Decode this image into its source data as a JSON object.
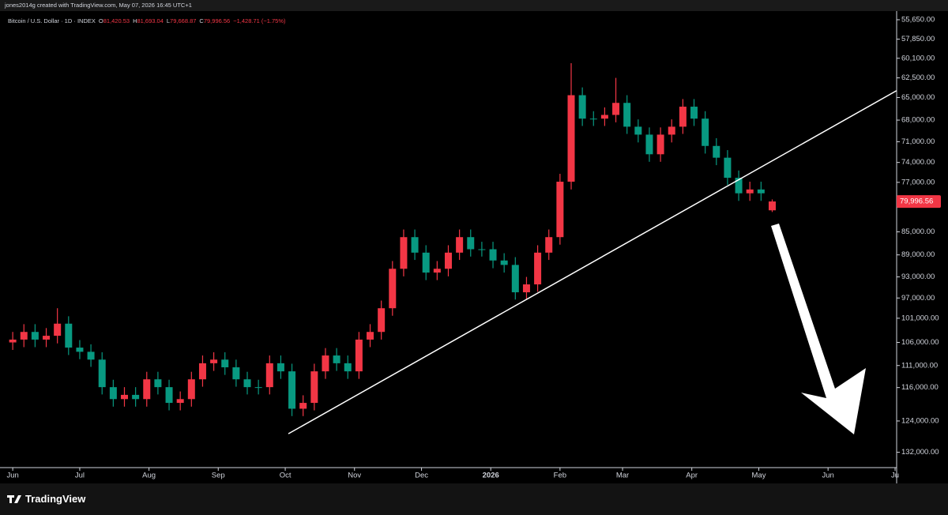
{
  "header": {
    "watermark": "jones2014g created with TradingView.com, May 07, 2026 16:45 UTC+1",
    "symbol": "Bitcoin / U.S. Dollar · 1D · INDEX",
    "quote": [
      "O",
      "81,420.53",
      "H",
      "81,693.04",
      "L",
      "79,668.87",
      "C",
      "79,996.56",
      "−1,428.71 (−1.75%)"
    ]
  },
  "chart_data": {
    "type": "candlestick",
    "log_scale": true,
    "up_color": "#089981",
    "down_color": "#f23645",
    "x": [
      0,
      5,
      10,
      15,
      20,
      25,
      30,
      35,
      40,
      45,
      50,
      55,
      60,
      65,
      70,
      75,
      80,
      85,
      90,
      95,
      100,
      105,
      110,
      115,
      120,
      125,
      130,
      135,
      140,
      145,
      150,
      155,
      160,
      165,
      170,
      175,
      180,
      185,
      190,
      195,
      200,
      205,
      210,
      215,
      220,
      225,
      230,
      235,
      240,
      245,
      250,
      255,
      260,
      265,
      270,
      275,
      280,
      285,
      290,
      295,
      300,
      305,
      310,
      315,
      320,
      325,
      330,
      335,
      340
    ],
    "open": [
      106000,
      105400,
      103800,
      105400,
      104600,
      102100,
      107100,
      108000,
      109700,
      115900,
      118700,
      117700,
      118700,
      114100,
      115900,
      119600,
      118700,
      114100,
      110500,
      109700,
      111400,
      114100,
      115900,
      115900,
      110500,
      112300,
      121000,
      119600,
      112300,
      108800,
      110500,
      112300,
      105400,
      103800,
      99000,
      91500,
      85900,
      88600,
      92200,
      91500,
      88600,
      85900,
      88000,
      88000,
      90000,
      90800,
      95900,
      94400,
      88600,
      85900,
      76900,
      64700,
      67800,
      67800,
      67300,
      65700,
      68900,
      70000,
      72800,
      70000,
      68900,
      66200,
      67800,
      71600,
      73300,
      76300,
      78700,
      78100,
      81420.53
    ],
    "high": [
      107600,
      107000,
      107000,
      107000,
      106200,
      108700,
      109600,
      111300,
      117600,
      120500,
      120500,
      120500,
      120500,
      117600,
      121400,
      121400,
      120500,
      115800,
      112200,
      113100,
      115800,
      117600,
      117600,
      117600,
      114000,
      122800,
      122800,
      121400,
      114000,
      112200,
      114000,
      114000,
      107000,
      105400,
      100500,
      92900,
      89900,
      93600,
      93600,
      92900,
      89900,
      89300,
      89300,
      91400,
      92200,
      97300,
      97300,
      95800,
      89900,
      87200,
      78100,
      68800,
      68800,
      68800,
      68300,
      69900,
      71100,
      73900,
      73900,
      71100,
      69900,
      68800,
      72700,
      74400,
      77400,
      79900,
      79900,
      79900,
      81693.04
    ],
    "low": [
      103800,
      102200,
      102200,
      103000,
      99000,
      100600,
      105500,
      106400,
      108100,
      114200,
      115900,
      115900,
      112400,
      112400,
      114200,
      116900,
      112400,
      108800,
      108100,
      108100,
      109700,
      112400,
      114200,
      108800,
      108800,
      110600,
      117800,
      110600,
      107200,
      107200,
      108800,
      103800,
      102200,
      97500,
      90100,
      84600,
      84600,
      87300,
      90100,
      87300,
      84600,
      84600,
      86700,
      86700,
      88700,
      89400,
      93000,
      87300,
      84600,
      75700,
      60700,
      63700,
      66800,
      66300,
      62500,
      64700,
      67900,
      69000,
      69000,
      67900,
      65200,
      65200,
      66800,
      70500,
      72200,
      75200,
      76900,
      76900,
      79668.87
    ],
    "close": [
      105400,
      103800,
      105400,
      104600,
      102100,
      107100,
      108000,
      109700,
      115900,
      118700,
      117700,
      118700,
      114100,
      115900,
      119600,
      118700,
      114100,
      110500,
      109700,
      111400,
      114100,
      115900,
      115900,
      110500,
      112300,
      121000,
      119600,
      112300,
      108800,
      110500,
      112300,
      105400,
      103800,
      99000,
      91500,
      85900,
      88600,
      92200,
      91500,
      88600,
      85900,
      88000,
      88000,
      90000,
      90800,
      95900,
      94400,
      88600,
      85900,
      76900,
      64700,
      67800,
      67800,
      67300,
      65700,
      68900,
      70000,
      72800,
      70000,
      68900,
      66200,
      67800,
      71600,
      73300,
      76300,
      78700,
      78100,
      78700,
      79996.56
    ],
    "last_price_label": "79,996.56",
    "xlim": [
      -5.7,
      395
    ],
    "xticks": [
      {
        "value": 0,
        "label": "Jun"
      },
      {
        "value": 30,
        "label": "Jul"
      },
      {
        "value": 61,
        "label": "Aug"
      },
      {
        "value": 92,
        "label": "Sep"
      },
      {
        "value": 122,
        "label": "Oct"
      },
      {
        "value": 153,
        "label": "Nov"
      },
      {
        "value": 183,
        "label": "Dec"
      },
      {
        "value": 214,
        "label": "2026"
      },
      {
        "value": 245,
        "label": "Feb"
      },
      {
        "value": 273,
        "label": "Mar"
      },
      {
        "value": 304,
        "label": "Apr"
      },
      {
        "value": 334,
        "label": "May"
      },
      {
        "value": 365,
        "label": "Jun"
      },
      {
        "value": 395,
        "label": "Ju"
      }
    ],
    "ylim": [
      136100,
      53500
    ],
    "yticks": [
      {
        "value": 55650,
        "label": "55,650.00"
      },
      {
        "value": 57850,
        "label": "57,850.00"
      },
      {
        "value": 60100,
        "label": "60,100.00"
      },
      {
        "value": 62500,
        "label": "62,500.00"
      },
      {
        "value": 65000,
        "label": "65,000.00"
      },
      {
        "value": 68000,
        "label": "68,000.00"
      },
      {
        "value": 71000,
        "label": "71,000.00"
      },
      {
        "value": 74000,
        "label": "74,000.00"
      },
      {
        "value": 77000,
        "label": "77,000.00"
      },
      {
        "value": 85000,
        "label": "85,000.00"
      },
      {
        "value": 89000,
        "label": "89,000.00"
      },
      {
        "value": 93000,
        "label": "93,000.00"
      },
      {
        "value": 97000,
        "label": "97,000.00"
      },
      {
        "value": 101000,
        "label": "101,000.00"
      },
      {
        "value": 106000,
        "label": "106,000.00"
      },
      {
        "value": 111000,
        "label": "111,000.00"
      },
      {
        "value": 116000,
        "label": "116,000.00"
      },
      {
        "value": 124000,
        "label": "124,000.00"
      },
      {
        "value": 132000,
        "label": "132,000.00"
      }
    ],
    "trendline": {
      "x": [
        123.4,
        395.6
      ],
      "values": [
        127200,
        64130
      ]
    }
  },
  "footer": {
    "brand": "TradingView"
  }
}
